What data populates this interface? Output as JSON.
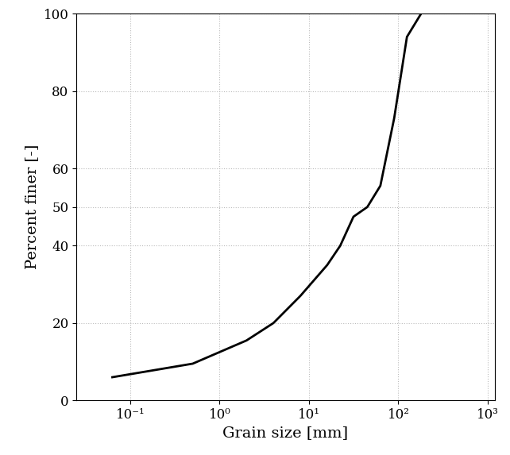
{
  "chart_data": {
    "type": "line",
    "x_label": "Grain size [mm]",
    "y_label": "Percent finer [-]",
    "x": [
      0.063,
      0.5,
      2,
      4,
      8,
      16,
      22.4,
      31.5,
      45,
      63,
      90,
      125,
      180
    ],
    "values": [
      6,
      9.5,
      15.5,
      20,
      27,
      35,
      40,
      47.5,
      50,
      55.5,
      73,
      94,
      100
    ],
    "color": "#000000",
    "log": "x",
    "grid": true,
    "xlim": [
      0.025,
      1200
    ],
    "ylim": [
      0,
      100
    ],
    "xticks": [
      {
        "value": 0.1,
        "label": "10⁻¹"
      },
      {
        "value": 1,
        "label": "10⁰"
      },
      {
        "value": 10,
        "label": "10¹"
      },
      {
        "value": 100,
        "label": "10²"
      },
      {
        "value": 1000,
        "label": "10³"
      }
    ],
    "yticks": [
      0,
      20,
      40,
      50,
      60,
      80,
      100
    ]
  }
}
